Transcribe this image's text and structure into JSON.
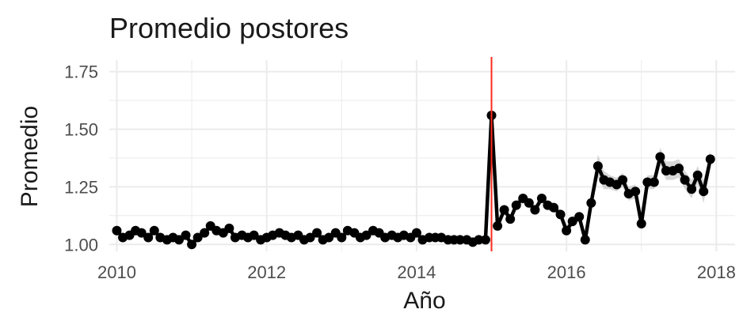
{
  "chart_data": {
    "type": "line",
    "title": "Promedio postores",
    "xlabel": "Año",
    "ylabel": "Promedio",
    "xlim": [
      2009.9,
      2018.25
    ],
    "ylim": [
      0.97,
      1.8
    ],
    "x_ticks": [
      {
        "value": 2010,
        "label": "2010"
      },
      {
        "value": 2012,
        "label": "2012"
      },
      {
        "value": 2014,
        "label": "2014"
      },
      {
        "value": 2016,
        "label": "2016"
      },
      {
        "value": 2018,
        "label": "2018"
      }
    ],
    "y_ticks": [
      {
        "value": 1.0,
        "label": "1.00"
      },
      {
        "value": 1.25,
        "label": "1.25"
      },
      {
        "value": 1.5,
        "label": "1.50"
      },
      {
        "value": 1.75,
        "label": "1.75"
      }
    ],
    "grid": true,
    "legend": "none",
    "reference_line": {
      "x": 2015.0,
      "color": "#ff2a1a"
    },
    "colors": {
      "line": "#000000",
      "ribbon": "#bdbdbd",
      "grid": "#ebebeb"
    },
    "series": [
      {
        "x": [
          2010.0,
          2010.08,
          2010.17,
          2010.25,
          2010.33,
          2010.42,
          2010.5,
          2010.58,
          2010.67,
          2010.75,
          2010.83,
          2010.92,
          2011.0,
          2011.08,
          2011.17,
          2011.25,
          2011.33,
          2011.42,
          2011.5,
          2011.58,
          2011.67,
          2011.75,
          2011.83,
          2011.92,
          2012.0,
          2012.08,
          2012.17,
          2012.25,
          2012.33,
          2012.42,
          2012.5,
          2012.58,
          2012.67,
          2012.75,
          2012.83,
          2012.92,
          2013.0,
          2013.08,
          2013.17,
          2013.25,
          2013.33,
          2013.42,
          2013.5,
          2013.58,
          2013.67,
          2013.75,
          2013.83,
          2013.92,
          2014.0,
          2014.08,
          2014.17,
          2014.25,
          2014.33,
          2014.42,
          2014.5,
          2014.58,
          2014.67,
          2014.75,
          2014.83,
          2014.92,
          2015.0,
          2015.08,
          2015.17,
          2015.25,
          2015.33,
          2015.42,
          2015.5,
          2015.58,
          2015.67,
          2015.75,
          2015.83,
          2015.92,
          2016.0,
          2016.08,
          2016.17,
          2016.25,
          2016.33,
          2016.42,
          2016.5,
          2016.58,
          2016.67,
          2016.75,
          2016.83,
          2016.92,
          2017.0,
          2017.08,
          2017.17,
          2017.25,
          2017.33,
          2017.42,
          2017.5,
          2017.58,
          2017.67,
          2017.75,
          2017.83,
          2017.92
        ],
        "y": [
          1.06,
          1.03,
          1.04,
          1.06,
          1.05,
          1.03,
          1.06,
          1.03,
          1.02,
          1.03,
          1.02,
          1.04,
          1.0,
          1.03,
          1.05,
          1.08,
          1.06,
          1.05,
          1.07,
          1.03,
          1.04,
          1.03,
          1.04,
          1.02,
          1.03,
          1.04,
          1.05,
          1.04,
          1.03,
          1.04,
          1.02,
          1.03,
          1.05,
          1.02,
          1.03,
          1.05,
          1.03,
          1.06,
          1.05,
          1.03,
          1.04,
          1.06,
          1.05,
          1.03,
          1.04,
          1.03,
          1.04,
          1.03,
          1.05,
          1.02,
          1.03,
          1.03,
          1.03,
          1.02,
          1.02,
          1.02,
          1.02,
          1.01,
          1.02,
          1.02,
          1.56,
          1.08,
          1.15,
          1.11,
          1.17,
          1.2,
          1.18,
          1.15,
          1.2,
          1.17,
          1.16,
          1.13,
          1.06,
          1.1,
          1.12,
          1.02,
          1.18,
          1.34,
          1.28,
          1.27,
          1.26,
          1.28,
          1.22,
          1.23,
          1.09,
          1.27,
          1.27,
          1.38,
          1.32,
          1.32,
          1.33,
          1.28,
          1.24,
          1.3,
          1.23,
          1.37
        ],
        "ci_halfwidth": [
          0.01,
          0.01,
          0.01,
          0.01,
          0.01,
          0.01,
          0.01,
          0.01,
          0.01,
          0.01,
          0.01,
          0.01,
          0.01,
          0.01,
          0.01,
          0.01,
          0.01,
          0.01,
          0.01,
          0.01,
          0.01,
          0.01,
          0.01,
          0.01,
          0.01,
          0.01,
          0.01,
          0.01,
          0.01,
          0.01,
          0.01,
          0.01,
          0.01,
          0.01,
          0.01,
          0.01,
          0.01,
          0.01,
          0.01,
          0.01,
          0.01,
          0.01,
          0.01,
          0.01,
          0.01,
          0.01,
          0.01,
          0.01,
          0.01,
          0.01,
          0.01,
          0.01,
          0.01,
          0.01,
          0.01,
          0.01,
          0.01,
          0.01,
          0.01,
          0.01,
          0.01,
          0.01,
          0.02,
          0.02,
          0.02,
          0.02,
          0.02,
          0.02,
          0.02,
          0.02,
          0.02,
          0.02,
          0.02,
          0.02,
          0.02,
          0.02,
          0.03,
          0.05,
          0.04,
          0.03,
          0.03,
          0.03,
          0.03,
          0.03,
          0.03,
          0.03,
          0.03,
          0.04,
          0.04,
          0.04,
          0.04,
          0.04,
          0.04,
          0.04,
          0.05,
          0.04
        ]
      }
    ]
  }
}
